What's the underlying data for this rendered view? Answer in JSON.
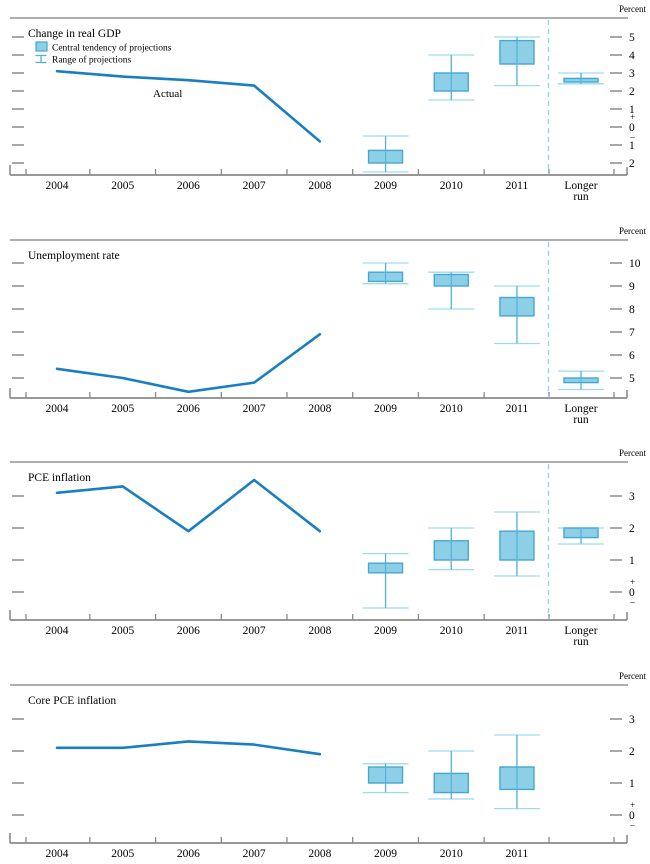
{
  "page": {
    "background": "#ffffff",
    "unit_label": "Percent"
  },
  "colors": {
    "actual_line": "#1a7fc1",
    "box_fill": "#8ecfe8",
    "box_stroke": "#45a8ce",
    "whisker": "#9fd9f0",
    "whisker_overlay": "#55b2d4",
    "divider": "#8fd2ec",
    "axis": "#8a8a8a",
    "rule": "#a3a3a3",
    "text": "#000000"
  },
  "legend": {
    "central_tendency_label": "Central tendency of projections",
    "range_label": "Range of projections"
  },
  "x_axis": {
    "years": [
      "2004",
      "2005",
      "2006",
      "2007",
      "2008",
      "2009",
      "2010",
      "2011"
    ],
    "longer_run_label_line1": "Longer",
    "longer_run_label_line2": "run"
  },
  "chart_data": [
    {
      "type": "line+box",
      "title": "Change in real GDP",
      "unit_label": "Percent",
      "yticks": [
        5,
        4,
        3,
        2,
        1,
        0,
        -1,
        -2
      ],
      "ylim": [
        -2.667,
        6.056
      ],
      "zero_sign": true,
      "divider": true,
      "has_longer_run": true,
      "show_legend": true,
      "actual": {
        "label": "Actual",
        "x": [
          2004,
          2005,
          2006,
          2007,
          2008
        ],
        "values": [
          3.1,
          2.8,
          2.6,
          2.3,
          -0.8
        ]
      },
      "projections": [
        {
          "x": "2009",
          "central_tendency": [
            -2.0,
            -1.3
          ],
          "range": [
            -2.5,
            -0.5
          ]
        },
        {
          "x": "2010",
          "central_tendency": [
            2.0,
            3.0
          ],
          "range": [
            1.5,
            4.0
          ]
        },
        {
          "x": "2011",
          "central_tendency": [
            3.5,
            4.8
          ],
          "range": [
            2.3,
            5.0
          ]
        },
        {
          "x": "Longer run",
          "central_tendency": [
            2.5,
            2.7
          ],
          "range": [
            2.4,
            3.0
          ]
        }
      ]
    },
    {
      "type": "line+box",
      "title": "Unemployment rate",
      "unit_label": "Percent",
      "yticks": [
        10,
        9,
        8,
        7,
        6,
        5
      ],
      "ylim": [
        4.13,
        11.0
      ],
      "zero_sign": false,
      "divider": true,
      "has_longer_run": true,
      "show_legend": false,
      "actual": {
        "label": "",
        "x": [
          2004,
          2005,
          2006,
          2007,
          2008
        ],
        "values": [
          5.4,
          5.0,
          4.4,
          4.8,
          6.9
        ]
      },
      "projections": [
        {
          "x": "2009",
          "central_tendency": [
            9.2,
            9.6
          ],
          "range": [
            9.1,
            10.0
          ]
        },
        {
          "x": "2010",
          "central_tendency": [
            9.0,
            9.5
          ],
          "range": [
            8.0,
            9.6
          ]
        },
        {
          "x": "2011",
          "central_tendency": [
            7.7,
            8.5
          ],
          "range": [
            6.5,
            9.0
          ]
        },
        {
          "x": "Longer run",
          "central_tendency": [
            4.8,
            5.0
          ],
          "range": [
            4.5,
            5.3
          ]
        }
      ]
    },
    {
      "type": "line+box",
      "title": "PCE inflation",
      "unit_label": "Percent",
      "yticks": [
        3,
        2,
        1,
        0
      ],
      "ylim": [
        -0.875,
        4.0625
      ],
      "zero_sign": true,
      "divider": true,
      "has_longer_run": true,
      "show_legend": false,
      "actual": {
        "label": "",
        "x": [
          2004,
          2005,
          2006,
          2007,
          2008
        ],
        "values": [
          3.1,
          3.3,
          1.9,
          3.5,
          1.9
        ]
      },
      "projections": [
        {
          "x": "2009",
          "central_tendency": [
            0.6,
            0.9
          ],
          "range": [
            -0.5,
            1.2
          ]
        },
        {
          "x": "2010",
          "central_tendency": [
            1.0,
            1.6
          ],
          "range": [
            0.7,
            2.0
          ]
        },
        {
          "x": "2011",
          "central_tendency": [
            1.0,
            1.9
          ],
          "range": [
            0.5,
            2.5
          ]
        },
        {
          "x": "Longer run",
          "central_tendency": [
            1.7,
            2.0
          ],
          "range": [
            1.5,
            2.0
          ]
        }
      ]
    },
    {
      "type": "line+box",
      "title": "Core PCE inflation",
      "unit_label": "Percent",
      "yticks": [
        3,
        2,
        1,
        0
      ],
      "ylim": [
        -0.875,
        4.0625
      ],
      "zero_sign": true,
      "divider": false,
      "has_longer_run": false,
      "show_legend": false,
      "actual": {
        "label": "",
        "x": [
          2004,
          2005,
          2006,
          2007,
          2008
        ],
        "values": [
          2.1,
          2.1,
          2.3,
          2.2,
          1.9
        ]
      },
      "projections": [
        {
          "x": "2009",
          "central_tendency": [
            1.0,
            1.5
          ],
          "range": [
            0.7,
            1.6
          ]
        },
        {
          "x": "2010",
          "central_tendency": [
            0.7,
            1.3
          ],
          "range": [
            0.5,
            2.0
          ]
        },
        {
          "x": "2011",
          "central_tendency": [
            0.8,
            1.5
          ],
          "range": [
            0.2,
            2.5
          ]
        }
      ]
    }
  ]
}
